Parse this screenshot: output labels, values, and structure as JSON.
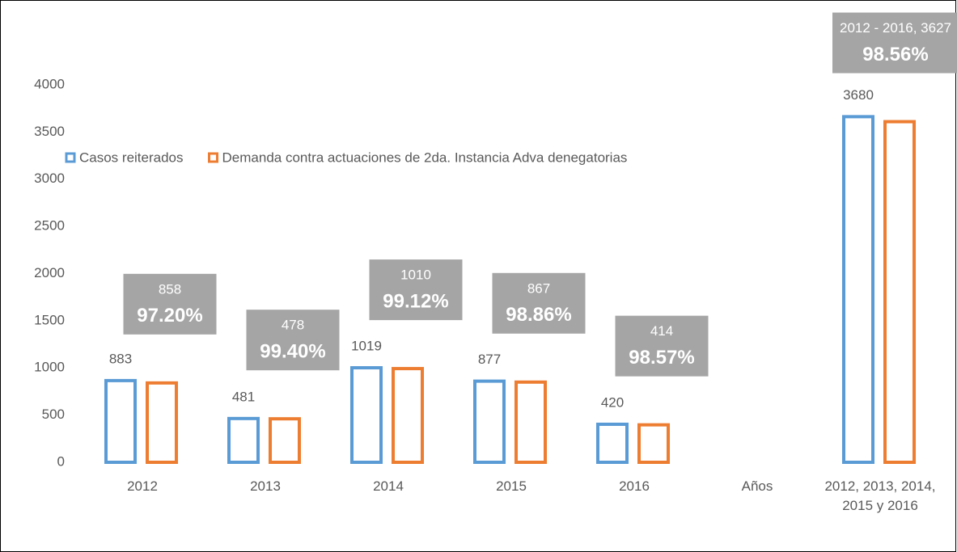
{
  "chart_data": {
    "type": "bar",
    "categories": [
      "2012",
      "2013",
      "2014",
      "2015",
      "2016",
      "Años",
      "2012, 2013, 2014, 2015 y 2016"
    ],
    "series": [
      {
        "name": "Casos reiterados",
        "color": "#5b9bd5",
        "values": [
          883,
          481,
          1019,
          877,
          420,
          null,
          3680
        ]
      },
      {
        "name": "Demanda contra actuaciones de  2da. Instancia Adva denegatorias",
        "color": "#ed7d31",
        "values": [
          858,
          478,
          1010,
          867,
          414,
          null,
          3627
        ],
        "value_labels": [
          "858",
          "478",
          "1010",
          "867",
          "414",
          null,
          "2012 - 2016, 3627"
        ],
        "percent_labels": [
          "97.20%",
          "99.40%",
          "99.12%",
          "98.86%",
          "98.57%",
          null,
          "98.56%"
        ]
      }
    ],
    "ylim": [
      0,
      4000
    ],
    "yticks": [
      0,
      500,
      1000,
      1500,
      2000,
      2500,
      3000,
      3500,
      4000
    ],
    "grid": false,
    "legend": "top-left"
  }
}
